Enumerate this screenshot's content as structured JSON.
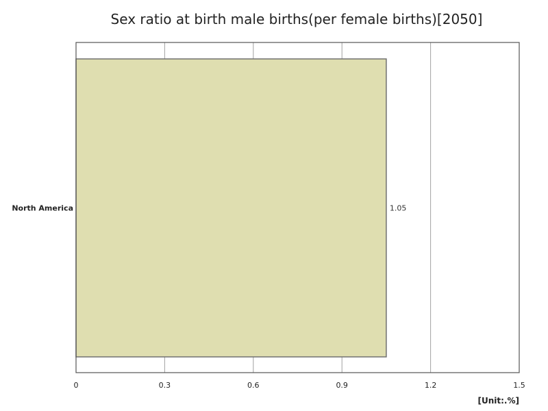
{
  "chart_data": {
    "type": "bar",
    "orientation": "horizontal",
    "title": "Sex ratio at birth male births(per female births)[2050]",
    "unit_label": "[Unit:.%]",
    "categories": [
      "North America"
    ],
    "values": [
      1.05
    ],
    "value_labels": [
      "1.05"
    ],
    "xlim": [
      0,
      1.5
    ],
    "x_ticks": [
      0,
      0.3,
      0.6,
      0.9,
      1.2,
      1.5
    ],
    "x_tick_labels": [
      "0",
      "0.3",
      "0.6",
      "0.9",
      "1.2",
      "1.5"
    ],
    "grid": "vertical",
    "colors": {
      "bar_fill": "#dfdeb0",
      "bar_stroke": "#707070",
      "grid": "#a0a0a0",
      "frame": "#555555"
    }
  }
}
